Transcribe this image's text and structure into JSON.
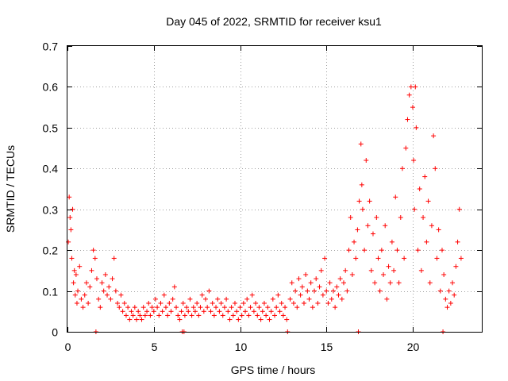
{
  "chart_data": {
    "type": "scatter",
    "title": "Day 045 of 2022, SRMTID for receiver ksu1",
    "xlabel": "GPS time / hours",
    "ylabel": "SRMTID / TECUs",
    "xlim": [
      0,
      24
    ],
    "ylim": [
      0,
      0.7
    ],
    "xticks": [
      0,
      5,
      10,
      15,
      20
    ],
    "xtick_labels": [
      "0",
      "5",
      "10",
      "15",
      "20"
    ],
    "yticks": [
      0,
      0.1,
      0.2,
      0.3,
      0.4,
      0.5,
      0.6,
      0.7
    ],
    "ytick_labels": [
      "0",
      "0.1",
      "0.2",
      "0.3",
      "0.4",
      "0.5",
      "0.6",
      "0.7"
    ],
    "grid": true,
    "marker": "+",
    "color": "#ff0000",
    "series": [
      {
        "name": "ksu1",
        "points": [
          [
            0.05,
            0.22
          ],
          [
            0.1,
            0.33
          ],
          [
            0.15,
            0.28
          ],
          [
            0.2,
            0.25
          ],
          [
            0.25,
            0.18
          ],
          [
            0.3,
            0.3
          ],
          [
            0.35,
            0.12
          ],
          [
            0.4,
            0.15
          ],
          [
            0.45,
            0.09
          ],
          [
            0.5,
            0.14
          ],
          [
            0.55,
            0.07
          ],
          [
            0.6,
            0.1
          ],
          [
            0.7,
            0.16
          ],
          [
            0.8,
            0.08
          ],
          [
            0.9,
            0.06
          ],
          [
            1.0,
            0.09
          ],
          [
            1.1,
            0.12
          ],
          [
            1.2,
            0.07
          ],
          [
            1.3,
            0.11
          ],
          [
            1.4,
            0.15
          ],
          [
            1.5,
            0.2
          ],
          [
            1.6,
            0.18
          ],
          [
            1.7,
            0.13
          ],
          [
            1.8,
            0.08
          ],
          [
            1.9,
            0.06
          ],
          [
            2.0,
            0.12
          ],
          [
            2.1,
            0.1
          ],
          [
            2.2,
            0.14
          ],
          [
            2.3,
            0.09
          ],
          [
            2.4,
            0.11
          ],
          [
            2.5,
            0.08
          ],
          [
            2.6,
            0.13
          ],
          [
            2.7,
            0.18
          ],
          [
            2.8,
            0.1
          ],
          [
            2.9,
            0.07
          ],
          [
            3.0,
            0.06
          ],
          [
            3.1,
            0.09
          ],
          [
            3.2,
            0.05
          ],
          [
            3.3,
            0.07
          ],
          [
            3.4,
            0.04
          ],
          [
            3.5,
            0.06
          ],
          [
            3.6,
            0.03
          ],
          [
            3.7,
            0.05
          ],
          [
            3.8,
            0.04
          ],
          [
            3.9,
            0.06
          ],
          [
            4.0,
            0.03
          ],
          [
            4.1,
            0.05
          ],
          [
            4.2,
            0.04
          ],
          [
            4.3,
            0.03
          ],
          [
            4.4,
            0.06
          ],
          [
            4.5,
            0.04
          ],
          [
            4.6,
            0.05
          ],
          [
            4.7,
            0.07
          ],
          [
            4.8,
            0.04
          ],
          [
            4.9,
            0.06
          ],
          [
            5.0,
            0.05
          ],
          [
            5.1,
            0.08
          ],
          [
            5.2,
            0.06
          ],
          [
            5.3,
            0.04
          ],
          [
            5.4,
            0.07
          ],
          [
            5.5,
            0.05
          ],
          [
            5.6,
            0.09
          ],
          [
            5.7,
            0.06
          ],
          [
            5.8,
            0.04
          ],
          [
            5.9,
            0.07
          ],
          [
            6.0,
            0.05
          ],
          [
            6.1,
            0.08
          ],
          [
            6.2,
            0.11
          ],
          [
            6.3,
            0.06
          ],
          [
            6.4,
            0.04
          ],
          [
            6.5,
            0.03
          ],
          [
            6.6,
            0.05
          ],
          [
            6.7,
            0.07
          ],
          [
            6.8,
            0.04
          ],
          [
            6.9,
            0.06
          ],
          [
            7.0,
            0.05
          ],
          [
            7.1,
            0.08
          ],
          [
            7.2,
            0.04
          ],
          [
            7.3,
            0.06
          ],
          [
            7.4,
            0.05
          ],
          [
            7.5,
            0.07
          ],
          [
            7.6,
            0.04
          ],
          [
            7.7,
            0.06
          ],
          [
            7.8,
            0.09
          ],
          [
            7.9,
            0.05
          ],
          [
            8.0,
            0.08
          ],
          [
            8.1,
            0.06
          ],
          [
            8.2,
            0.1
          ],
          [
            8.3,
            0.05
          ],
          [
            8.4,
            0.07
          ],
          [
            8.5,
            0.04
          ],
          [
            8.6,
            0.06
          ],
          [
            8.7,
            0.08
          ],
          [
            8.8,
            0.05
          ],
          [
            8.9,
            0.07
          ],
          [
            9.0,
            0.04
          ],
          [
            9.1,
            0.06
          ],
          [
            9.2,
            0.08
          ],
          [
            9.3,
            0.05
          ],
          [
            9.4,
            0.03
          ],
          [
            9.5,
            0.06
          ],
          [
            9.6,
            0.04
          ],
          [
            9.7,
            0.07
          ],
          [
            9.8,
            0.05
          ],
          [
            9.9,
            0.03
          ],
          [
            10.0,
            0.06
          ],
          [
            10.1,
            0.04
          ],
          [
            10.2,
            0.07
          ],
          [
            10.3,
            0.05
          ],
          [
            10.4,
            0.08
          ],
          [
            10.5,
            0.04
          ],
          [
            10.6,
            0.06
          ],
          [
            10.7,
            0.09
          ],
          [
            10.8,
            0.05
          ],
          [
            10.9,
            0.07
          ],
          [
            11.0,
            0.04
          ],
          [
            11.1,
            0.06
          ],
          [
            11.2,
            0.03
          ],
          [
            11.3,
            0.05
          ],
          [
            11.4,
            0.07
          ],
          [
            11.5,
            0.04
          ],
          [
            11.6,
            0.06
          ],
          [
            11.7,
            0.03
          ],
          [
            11.8,
            0.05
          ],
          [
            11.9,
            0.08
          ],
          [
            12.0,
            0.04
          ],
          [
            12.1,
            0.06
          ],
          [
            12.2,
            0.09
          ],
          [
            12.3,
            0.05
          ],
          [
            12.4,
            0.07
          ],
          [
            12.5,
            0.04
          ],
          [
            12.6,
            0.06
          ],
          [
            12.7,
            0.03
          ],
          [
            12.9,
            0.08
          ],
          [
            13.0,
            0.12
          ],
          [
            13.1,
            0.07
          ],
          [
            13.2,
            0.1
          ],
          [
            13.3,
            0.06
          ],
          [
            13.4,
            0.13
          ],
          [
            13.5,
            0.09
          ],
          [
            13.6,
            0.11
          ],
          [
            13.7,
            0.07
          ],
          [
            13.8,
            0.14
          ],
          [
            13.9,
            0.1
          ],
          [
            14.0,
            0.08
          ],
          [
            14.1,
            0.12
          ],
          [
            14.2,
            0.06
          ],
          [
            14.3,
            0.1
          ],
          [
            14.4,
            0.13
          ],
          [
            14.5,
            0.07
          ],
          [
            14.6,
            0.11
          ],
          [
            14.7,
            0.15
          ],
          [
            14.8,
            0.09
          ],
          [
            14.9,
            0.18
          ],
          [
            15.0,
            0.1
          ],
          [
            15.1,
            0.07
          ],
          [
            15.2,
            0.12
          ],
          [
            15.3,
            0.08
          ],
          [
            15.4,
            0.1
          ],
          [
            15.5,
            0.06
          ],
          [
            15.6,
            0.11
          ],
          [
            15.7,
            0.09
          ],
          [
            15.8,
            0.13
          ],
          [
            15.9,
            0.08
          ],
          [
            16.0,
            0.12
          ],
          [
            16.1,
            0.15
          ],
          [
            16.2,
            0.1
          ],
          [
            16.3,
            0.2
          ],
          [
            16.4,
            0.28
          ],
          [
            16.5,
            0.14
          ],
          [
            16.6,
            0.22
          ],
          [
            16.7,
            0.18
          ],
          [
            16.8,
            0.25
          ],
          [
            16.9,
            0.32
          ],
          [
            17.0,
            0.46
          ],
          [
            17.05,
            0.36
          ],
          [
            17.1,
            0.3
          ],
          [
            17.2,
            0.2
          ],
          [
            17.3,
            0.42
          ],
          [
            17.4,
            0.26
          ],
          [
            17.5,
            0.32
          ],
          [
            17.6,
            0.15
          ],
          [
            17.7,
            0.24
          ],
          [
            17.8,
            0.12
          ],
          [
            17.9,
            0.28
          ],
          [
            18.0,
            0.18
          ],
          [
            18.1,
            0.1
          ],
          [
            18.2,
            0.2
          ],
          [
            18.3,
            0.14
          ],
          [
            18.4,
            0.26
          ],
          [
            18.5,
            0.08
          ],
          [
            18.6,
            0.16
          ],
          [
            18.7,
            0.12
          ],
          [
            18.8,
            0.22
          ],
          [
            18.9,
            0.15
          ],
          [
            19.0,
            0.33
          ],
          [
            19.1,
            0.2
          ],
          [
            19.2,
            0.12
          ],
          [
            19.3,
            0.28
          ],
          [
            19.4,
            0.4
          ],
          [
            19.5,
            0.18
          ],
          [
            19.6,
            0.45
          ],
          [
            19.7,
            0.52
          ],
          [
            19.8,
            0.58
          ],
          [
            19.9,
            0.6
          ],
          [
            20.0,
            0.55
          ],
          [
            20.05,
            0.42
          ],
          [
            20.1,
            0.3
          ],
          [
            20.15,
            0.6
          ],
          [
            20.2,
            0.5
          ],
          [
            20.3,
            0.2
          ],
          [
            20.4,
            0.35
          ],
          [
            20.5,
            0.15
          ],
          [
            20.6,
            0.28
          ],
          [
            20.7,
            0.38
          ],
          [
            20.8,
            0.22
          ],
          [
            20.9,
            0.32
          ],
          [
            21.0,
            0.12
          ],
          [
            21.1,
            0.26
          ],
          [
            21.2,
            0.48
          ],
          [
            21.3,
            0.4
          ],
          [
            21.4,
            0.18
          ],
          [
            21.5,
            0.25
          ],
          [
            21.6,
            0.1
          ],
          [
            21.7,
            0.2
          ],
          [
            21.8,
            0.14
          ],
          [
            21.9,
            0.08
          ],
          [
            22.0,
            0.06
          ],
          [
            22.1,
            0.1
          ],
          [
            22.2,
            0.07
          ],
          [
            22.3,
            0.12
          ],
          [
            22.4,
            0.09
          ],
          [
            22.5,
            0.16
          ],
          [
            22.6,
            0.22
          ],
          [
            22.7,
            0.3
          ],
          [
            22.8,
            0.18
          ]
        ],
        "zeros": [
          1.65,
          6.65,
          6.75,
          12.75,
          16.85,
          21.75
        ]
      }
    ]
  }
}
